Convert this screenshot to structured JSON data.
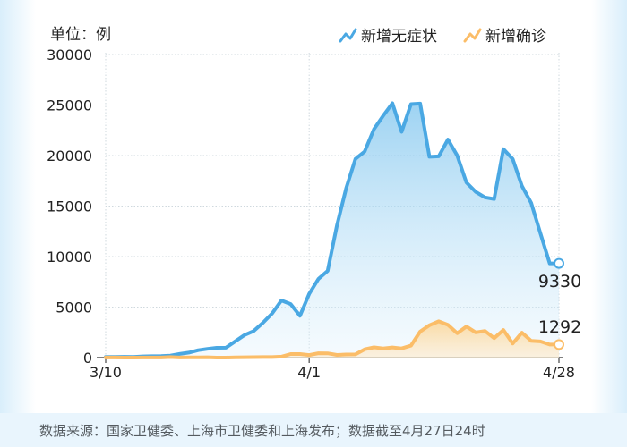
{
  "chart_data": {
    "type": "area",
    "unit_label": "单位：例",
    "legend": [
      {
        "name": "新增无症状",
        "color": "#4aa8e3"
      },
      {
        "name": "新增确诊",
        "color": "#fbbd68"
      }
    ],
    "legend_placement": "top-right",
    "ylim": [
      0,
      30000
    ],
    "yticks": [
      "30000",
      "25000",
      "20000",
      "15000",
      "10000",
      "5000",
      "0"
    ],
    "ytick_values": [
      30000,
      25000,
      20000,
      15000,
      10000,
      5000,
      0
    ],
    "xticks": [
      {
        "label": "3/10",
        "index": 0
      },
      {
        "label": "4/1",
        "index": 22
      },
      {
        "label": "4/28",
        "index": 49
      }
    ],
    "dates": [
      "3/10",
      "3/11",
      "3/12",
      "3/13",
      "3/14",
      "3/15",
      "3/16",
      "3/17",
      "3/18",
      "3/19",
      "3/20",
      "3/21",
      "3/22",
      "3/23",
      "3/24",
      "3/25",
      "3/26",
      "3/27",
      "3/28",
      "3/29",
      "3/30",
      "3/31",
      "4/1",
      "4/2",
      "4/3",
      "4/4",
      "4/5",
      "4/6",
      "4/7",
      "4/8",
      "4/9",
      "4/10",
      "4/11",
      "4/12",
      "4/13",
      "4/14",
      "4/15",
      "4/16",
      "4/17",
      "4/18",
      "4/19",
      "4/20",
      "4/21",
      "4/22",
      "4/23",
      "4/24",
      "4/25",
      "4/26",
      "4/27",
      "4/28"
    ],
    "series": [
      {
        "name": "新增无症状",
        "color": "#4aa8e3",
        "values": [
          64,
          62,
          76,
          64,
          128,
          139,
          150,
          203,
          366,
          492,
          734,
          865,
          977,
          981,
          1609,
          2231,
          2631,
          3450,
          4381,
          5656,
          5298,
          4144,
          6311,
          7788,
          8581,
          13086,
          16766,
          19660,
          20398,
          22609,
          23937,
          25173,
          22348,
          25087,
          25141,
          19872,
          19923,
          21582,
          20012,
          17332,
          16407,
          15861,
          15698,
          20634,
          19657,
          16983,
          15319,
          12309,
          9330,
          9330
        ]
      },
      {
        "name": "新增确诊",
        "color": "#fbbd68",
        "values": [
          11,
          5,
          1,
          1,
          9,
          5,
          8,
          57,
          8,
          17,
          24,
          31,
          4,
          4,
          29,
          38,
          45,
          50,
          50,
          96,
          355,
          358,
          260,
          438,
          425,
          268,
          311,
          322,
          824,
          1015,
          914,
          1006,
          914,
          1189,
          2573,
          3200,
          3590,
          3238,
          2417,
          3084,
          2494,
          2634,
          1931,
          2736,
          1401,
          2472,
          1661,
          1606,
          1292,
          1292
        ]
      }
    ],
    "end_labels": {
      "asymptomatic": "9330",
      "confirmed": "1292"
    },
    "source_note": "数据来源：国家卫健委、上海市卫健委和上海发布；数据截至4月27日24时"
  }
}
